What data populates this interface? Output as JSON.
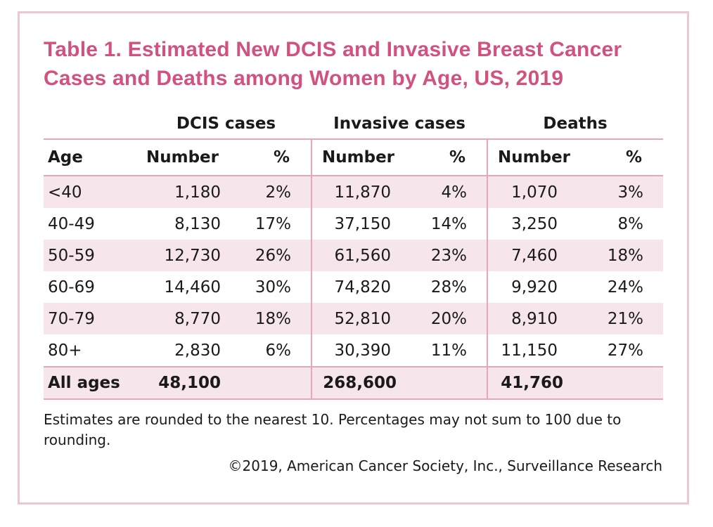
{
  "title": "Table 1. Estimated New DCIS and Invasive Breast Cancer Cases and Deaths among Women by Age, US, 2019",
  "colors": {
    "accent": "#d0527f",
    "border": "#ecc6d2",
    "rule": "#e6a7bb",
    "stripe": "#f6e6ec"
  },
  "table": {
    "group_headers": [
      "DCIS cases",
      "Invasive cases",
      "Deaths"
    ],
    "sub_headers": [
      "Age",
      "Number",
      "%",
      "Number",
      "%",
      "Number",
      "%"
    ],
    "rows": [
      [
        "<40",
        "1,180",
        "2%",
        "11,870",
        "4%",
        "1,070",
        "3%"
      ],
      [
        "40-49",
        "8,130",
        "17%",
        "37,150",
        "14%",
        "3,250",
        "8%"
      ],
      [
        "50-59",
        "12,730",
        "26%",
        "61,560",
        "23%",
        "7,460",
        "18%"
      ],
      [
        "60-69",
        "14,460",
        "30%",
        "74,820",
        "28%",
        "9,920",
        "24%"
      ],
      [
        "70-79",
        "8,770",
        "18%",
        "52,810",
        "20%",
        "8,910",
        "21%"
      ],
      [
        "80+",
        "2,830",
        "6%",
        "30,390",
        "11%",
        "11,150",
        "27%"
      ]
    ],
    "total": [
      "All ages",
      "48,100",
      "",
      "268,600",
      "",
      "41,760",
      ""
    ]
  },
  "footnote": "Estimates are rounded to the nearest 10. Percentages may not sum to 100 due to rounding.",
  "credit": "©2019, American Cancer Society, Inc., Surveillance Research"
}
